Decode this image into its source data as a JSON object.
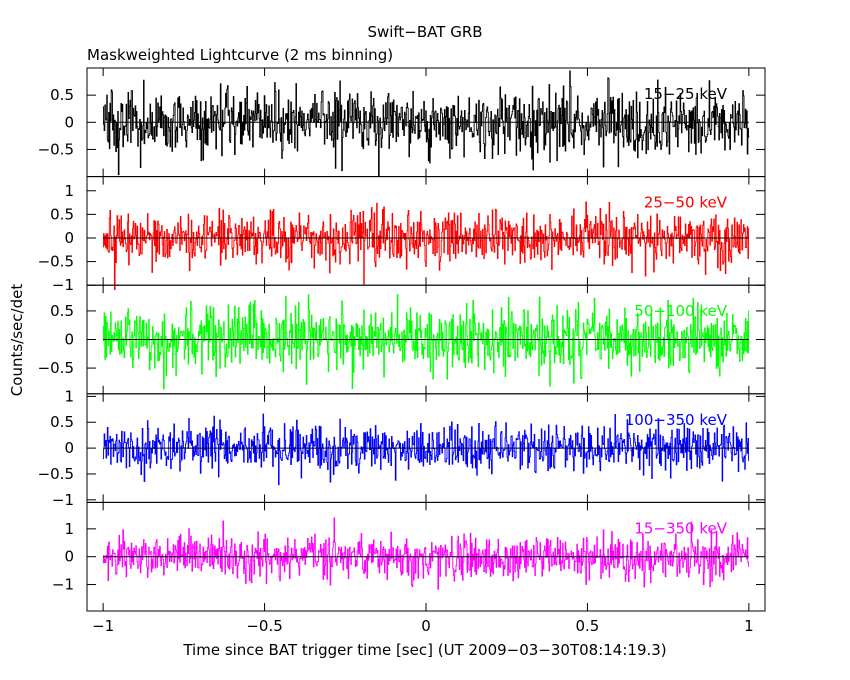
{
  "title": "Swift−BAT GRB",
  "subtitle": "Maskweighted Lightcurve (2 ms binning)",
  "xlabel": "Time since BAT trigger time [sec] (UT 2009−03−30T08:14:19.3)",
  "ylabel": "Counts/sec/det",
  "chart_data": {
    "type": "line",
    "title": "Swift−BAT GRB",
    "subtitle": "Maskweighted Lightcurve (2 ms binning)",
    "xlabel": "Time since BAT trigger time [sec] (UT 2009−03−30T08:14:19.3)",
    "ylabel": "Counts/sec/det",
    "xlim": [
      -1.05,
      1.05
    ],
    "x_step": 0.002,
    "x_ticks": [
      {
        "v": -1,
        "label": "−1"
      },
      {
        "v": -0.5,
        "label": "−0.5"
      },
      {
        "v": 0,
        "label": "0"
      },
      {
        "v": 0.5,
        "label": "0.5"
      },
      {
        "v": 1,
        "label": "1"
      }
    ],
    "panels": [
      {
        "name": "15−25 keV",
        "color": "#000000",
        "ylim": [
          -1.0,
          1.0
        ],
        "y_ticks": [
          {
            "v": 0.5,
            "label": "0.5"
          },
          {
            "v": 0,
            "label": "0"
          },
          {
            "v": -0.5,
            "label": "−0.5"
          }
        ],
        "amplitude": 0.55,
        "trend": "flat, noise-dominated, |y| up to ~1"
      },
      {
        "name": "25−50 keV",
        "color": "#ff0000",
        "ylim": [
          -1.0,
          1.3
        ],
        "y_ticks": [
          {
            "v": 1,
            "label": "1"
          },
          {
            "v": 0.5,
            "label": "0.5"
          },
          {
            "v": 0,
            "label": "0"
          },
          {
            "v": -0.5,
            "label": "−0.5"
          },
          {
            "v": -1,
            "label": "−1"
          }
        ],
        "amplitude": 0.5,
        "trend": "flat, noise-dominated, |y| up to ~1.1"
      },
      {
        "name": "50−100 keV",
        "color": "#00ff00",
        "ylim": [
          -0.95,
          0.95
        ],
        "y_ticks": [
          {
            "v": 0.5,
            "label": "0.5"
          },
          {
            "v": 0,
            "label": "0"
          },
          {
            "v": -0.5,
            "label": "−0.5"
          }
        ],
        "amplitude": 0.5,
        "trend": "flat, noise-dominated, |y| up to ~0.9"
      },
      {
        "name": "100−350 keV",
        "color": "#0000ff",
        "ylim": [
          -1.05,
          1.05
        ],
        "y_ticks": [
          {
            "v": 1,
            "label": "1"
          },
          {
            "v": 0.5,
            "label": "0.5"
          },
          {
            "v": 0,
            "label": "0"
          },
          {
            "v": -0.5,
            "label": "−0.5"
          },
          {
            "v": -1,
            "label": "−1"
          }
        ],
        "amplitude": 0.4,
        "trend": "flat, noise-dominated, |y| up to ~1"
      },
      {
        "name": "15−350 keV",
        "color": "#ff00ff",
        "ylim": [
          -1.95,
          1.95
        ],
        "y_ticks": [
          {
            "v": 1,
            "label": "1"
          },
          {
            "v": 0,
            "label": "0"
          },
          {
            "v": -1,
            "label": "−1"
          }
        ],
        "amplitude": 0.75,
        "trend": "flat, noise-dominated, |y| up to ~1.6"
      }
    ]
  }
}
